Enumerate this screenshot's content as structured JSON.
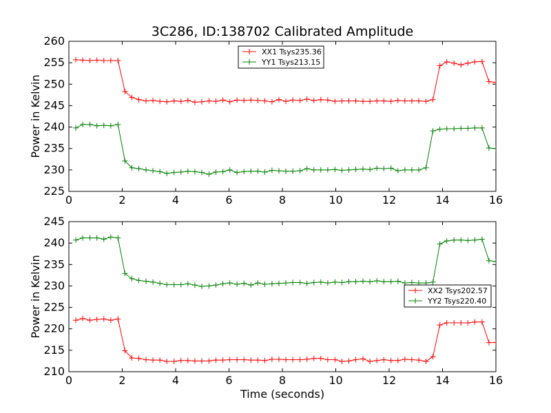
{
  "figure": {
    "title": "3C286, ID:138702 Calibrated Amplitude",
    "xlabel": "Time (seconds)"
  },
  "chart_data": [
    {
      "type": "line",
      "title": "3C286, ID:138702 Calibrated Amplitude",
      "xlabel": "",
      "ylabel": "Power in Kelvin",
      "xlim": [
        0,
        16
      ],
      "ylim": [
        225,
        260
      ],
      "xticks": [
        0,
        2,
        4,
        6,
        8,
        10,
        12,
        14,
        16
      ],
      "yticks": [
        225,
        230,
        235,
        240,
        245,
        250,
        255,
        260
      ],
      "grid": false,
      "legend": "top-center",
      "x": [
        0.26,
        0.52,
        0.79,
        1.05,
        1.31,
        1.57,
        1.84,
        2.1,
        2.36,
        2.62,
        2.89,
        3.15,
        3.41,
        3.67,
        3.94,
        4.2,
        4.46,
        4.72,
        4.98,
        5.25,
        5.51,
        5.77,
        6.03,
        6.3,
        6.56,
        6.82,
        7.08,
        7.34,
        7.61,
        7.87,
        8.13,
        8.39,
        8.66,
        8.92,
        9.18,
        9.44,
        9.7,
        9.97,
        10.23,
        10.49,
        10.75,
        11.02,
        11.28,
        11.54,
        11.8,
        12.07,
        12.33,
        12.59,
        12.85,
        13.11,
        13.38,
        13.64,
        13.9,
        14.16,
        14.43,
        14.69,
        14.95,
        15.21,
        15.48,
        15.74,
        16.0
      ],
      "series": [
        {
          "name": "XX1 Tsys235.36",
          "color": "#ff0000",
          "values": [
            255.7,
            255.6,
            255.5,
            255.6,
            255.5,
            255.5,
            255.5,
            248.3,
            246.9,
            246.4,
            246.1,
            246.2,
            246.0,
            245.9,
            246.1,
            246.0,
            246.2,
            245.8,
            245.9,
            246.1,
            246.0,
            246.3,
            245.9,
            246.3,
            246.2,
            246.3,
            246.2,
            246.1,
            245.9,
            246.4,
            246.0,
            246.3,
            246.2,
            246.5,
            246.2,
            246.4,
            246.3,
            246.0,
            246.1,
            246.1,
            246.1,
            246.0,
            246.0,
            246.1,
            246.1,
            246.0,
            246.2,
            246.1,
            246.1,
            246.1,
            246.0,
            246.4,
            254.3,
            255.2,
            254.9,
            254.5,
            254.9,
            255.2,
            255.3,
            250.6,
            250.4
          ]
        },
        {
          "name": "YY1 Tsys213.15",
          "color": "#008000",
          "values": [
            239.8,
            240.6,
            240.6,
            240.3,
            240.4,
            240.3,
            240.6,
            232.1,
            230.5,
            230.3,
            230.0,
            229.8,
            229.6,
            229.2,
            229.4,
            229.5,
            229.7,
            229.6,
            229.4,
            229.0,
            229.5,
            229.6,
            230.0,
            229.4,
            229.6,
            229.7,
            229.7,
            229.5,
            229.9,
            229.8,
            229.7,
            229.7,
            229.8,
            230.3,
            230.0,
            230.0,
            230.0,
            230.1,
            229.9,
            230.0,
            230.1,
            230.2,
            230.1,
            230.4,
            230.3,
            230.4,
            229.8,
            230.0,
            230.0,
            230.0,
            230.5,
            239.1,
            239.5,
            239.6,
            239.6,
            239.7,
            239.7,
            239.8,
            239.8,
            235.1,
            235.0
          ]
        }
      ]
    },
    {
      "type": "line",
      "xlabel": "Time (seconds)",
      "ylabel": "Power in Kelvin",
      "xlim": [
        0,
        16
      ],
      "ylim": [
        210,
        245
      ],
      "xticks": [
        0,
        2,
        4,
        6,
        8,
        10,
        12,
        14,
        16
      ],
      "yticks": [
        210,
        215,
        220,
        225,
        230,
        235,
        240,
        245
      ],
      "grid": false,
      "legend": "center-right",
      "x": [
        0.26,
        0.52,
        0.79,
        1.05,
        1.31,
        1.57,
        1.84,
        2.1,
        2.36,
        2.62,
        2.89,
        3.15,
        3.41,
        3.67,
        3.94,
        4.2,
        4.46,
        4.72,
        4.98,
        5.25,
        5.51,
        5.77,
        6.03,
        6.3,
        6.56,
        6.82,
        7.08,
        7.34,
        7.61,
        7.87,
        8.13,
        8.39,
        8.66,
        8.92,
        9.18,
        9.44,
        9.7,
        9.97,
        10.23,
        10.49,
        10.75,
        11.02,
        11.28,
        11.54,
        11.8,
        12.07,
        12.33,
        12.59,
        12.85,
        13.11,
        13.38,
        13.64,
        13.9,
        14.16,
        14.43,
        14.69,
        14.95,
        15.21,
        15.48,
        15.74,
        16.0
      ],
      "series": [
        {
          "name": "XX2 Tsys202.57",
          "color": "#ff0000",
          "values": [
            222.0,
            222.4,
            222.0,
            222.2,
            222.3,
            222.0,
            222.3,
            214.9,
            213.2,
            213.1,
            212.8,
            212.7,
            212.7,
            212.4,
            212.4,
            212.6,
            212.6,
            212.5,
            212.5,
            212.5,
            212.7,
            212.7,
            212.8,
            212.8,
            212.8,
            212.7,
            212.7,
            212.6,
            212.9,
            212.9,
            212.8,
            212.8,
            212.8,
            212.9,
            213.1,
            213.1,
            212.8,
            212.8,
            212.4,
            212.5,
            212.8,
            213.0,
            212.4,
            212.6,
            212.8,
            212.6,
            212.6,
            212.9,
            212.8,
            212.7,
            212.4,
            213.5,
            220.9,
            221.4,
            221.4,
            221.4,
            221.4,
            221.6,
            221.6,
            216.8,
            216.8
          ]
        },
        {
          "name": "YY2 Tsys220.40",
          "color": "#008000",
          "values": [
            240.7,
            241.2,
            241.2,
            241.2,
            240.9,
            241.4,
            241.2,
            232.9,
            231.7,
            231.3,
            231.1,
            230.9,
            230.6,
            230.3,
            230.3,
            230.3,
            230.5,
            230.2,
            229.9,
            230.0,
            230.2,
            230.5,
            230.7,
            230.4,
            230.6,
            230.2,
            230.7,
            230.4,
            230.5,
            230.6,
            230.7,
            230.8,
            230.8,
            230.6,
            230.8,
            230.9,
            230.7,
            230.9,
            230.8,
            231.0,
            231.0,
            231.1,
            231.0,
            231.2,
            231.0,
            231.0,
            231.1,
            230.7,
            230.8,
            230.7,
            230.7,
            230.9,
            239.8,
            240.5,
            240.7,
            240.7,
            240.6,
            240.7,
            240.9,
            235.9,
            235.7
          ]
        }
      ]
    }
  ]
}
